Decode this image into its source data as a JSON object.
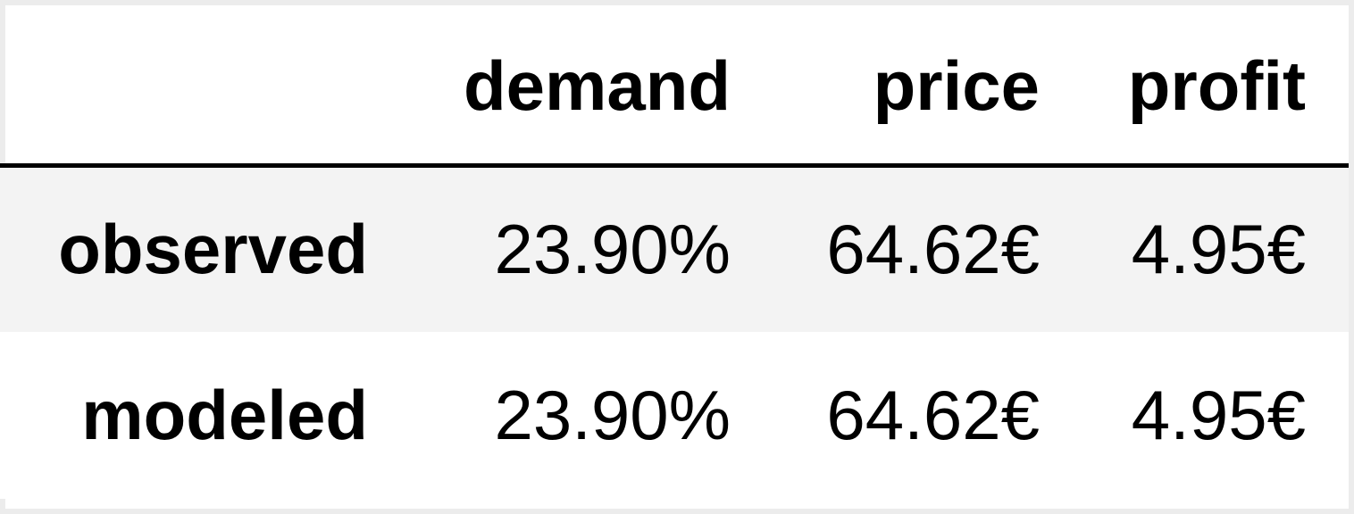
{
  "table": {
    "columns": [
      "",
      "demand",
      "price",
      "profit"
    ],
    "rows": [
      {
        "label": "observed",
        "demand": "23.90%",
        "price": "64.62€",
        "profit": "4.95€"
      },
      {
        "label": "modeled",
        "demand": "23.90%",
        "price": "64.62€",
        "profit": "4.95€"
      }
    ]
  }
}
